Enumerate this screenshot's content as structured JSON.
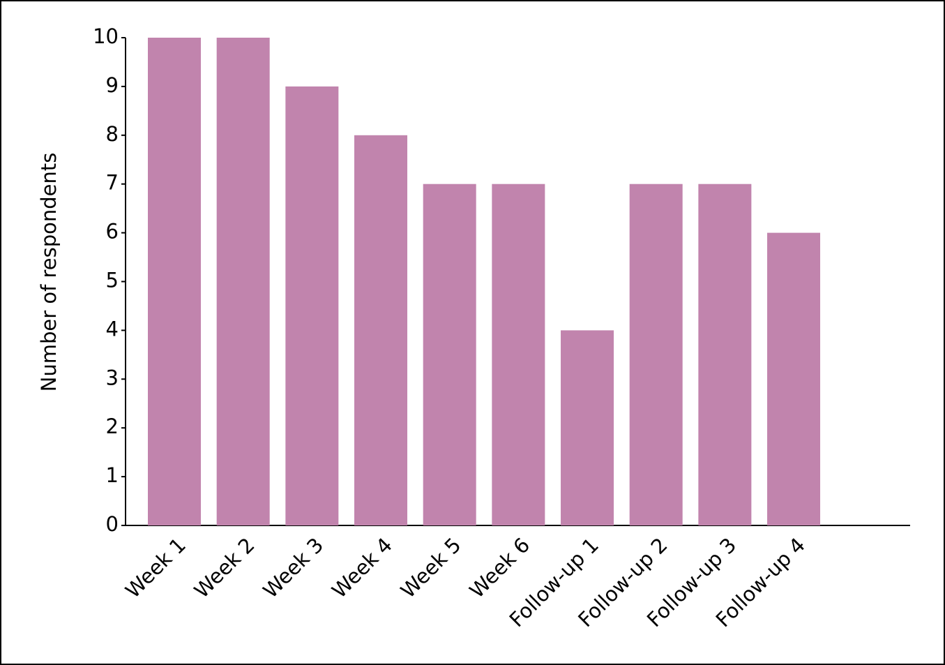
{
  "chart_data": {
    "type": "bar",
    "y_label": "Number of respondents",
    "categories": [
      "Week 1",
      "Week 2",
      "Week 3",
      "Week 4",
      "Week 5",
      "Week 6",
      "Follow-up 1",
      "Follow-up 2",
      "Follow-up 3",
      "Follow-up 4"
    ],
    "values": [
      10,
      10,
      9,
      8,
      7,
      7,
      4,
      7,
      7,
      6
    ],
    "color": "#c184ad",
    "ylim": [
      0,
      10
    ],
    "yticks": [
      0,
      1,
      2,
      3,
      4,
      5,
      6,
      7,
      8,
      9,
      10
    ],
    "grid": false
  }
}
